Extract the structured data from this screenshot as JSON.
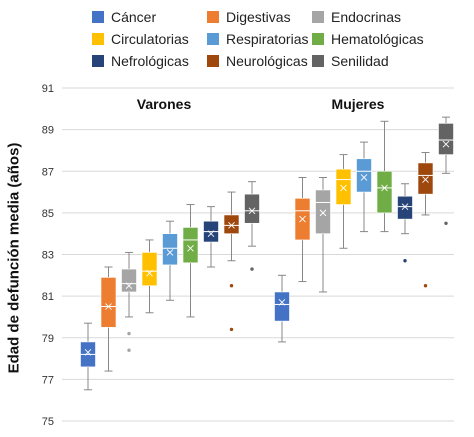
{
  "chart_data": {
    "type": "boxplot",
    "ylabel": "Edad de defunción media (años)",
    "ylim": [
      75,
      91
    ],
    "yticks": [
      75,
      77,
      79,
      81,
      83,
      85,
      87,
      89,
      91
    ],
    "grid": "horizontal",
    "legend_position": "top",
    "groups": [
      "Varones",
      "Mujeres"
    ],
    "series": [
      {
        "name": "Cáncer",
        "color": "#4472C4",
        "Varones": {
          "min": 76.5,
          "q1": 77.6,
          "median": 78.2,
          "q3": 78.8,
          "max": 79.7,
          "mean": 78.3,
          "outliers": []
        },
        "Mujeres": {
          "min": 78.8,
          "q1": 79.8,
          "median": 80.6,
          "q3": 81.2,
          "max": 82.0,
          "mean": 80.7,
          "outliers": []
        }
      },
      {
        "name": "Digestivas",
        "color": "#ED7D31",
        "Varones": {
          "min": 77.4,
          "q1": 79.5,
          "median": 80.5,
          "q3": 81.9,
          "max": 82.4,
          "mean": 80.5,
          "outliers": []
        },
        "Mujeres": {
          "min": 81.7,
          "q1": 83.7,
          "median": 85.1,
          "q3": 85.7,
          "max": 86.7,
          "mean": 84.7,
          "outliers": []
        }
      },
      {
        "name": "Endocrinas",
        "color": "#A5A5A5",
        "Varones": {
          "min": 80.0,
          "q1": 81.2,
          "median": 81.6,
          "q3": 82.3,
          "max": 83.1,
          "mean": 81.5,
          "outliers": [
            79.2,
            78.4
          ]
        },
        "Mujeres": {
          "min": 81.2,
          "q1": 84.0,
          "median": 85.5,
          "q3": 86.1,
          "max": 86.7,
          "mean": 85.0,
          "outliers": []
        }
      },
      {
        "name": "Circulatorias",
        "color": "#FFC000",
        "Varones": {
          "min": 80.2,
          "q1": 81.5,
          "median": 82.2,
          "q3": 83.1,
          "max": 83.7,
          "mean": 82.1,
          "outliers": []
        },
        "Mujeres": {
          "min": 83.3,
          "q1": 85.4,
          "median": 86.6,
          "q3": 87.1,
          "max": 87.8,
          "mean": 86.2,
          "outliers": []
        }
      },
      {
        "name": "Respiratorias",
        "color": "#5B9BD5",
        "Varones": {
          "min": 80.8,
          "q1": 82.5,
          "median": 83.3,
          "q3": 84.0,
          "max": 84.6,
          "mean": 83.1,
          "outliers": []
        },
        "Mujeres": {
          "min": 84.1,
          "q1": 86.0,
          "median": 87.0,
          "q3": 87.6,
          "max": 88.4,
          "mean": 86.7,
          "outliers": []
        }
      },
      {
        "name": "Hematológicas",
        "color": "#70AD47",
        "Varones": {
          "min": 80.0,
          "q1": 82.6,
          "median": 83.7,
          "q3": 84.3,
          "max": 85.4,
          "mean": 83.3,
          "outliers": []
        },
        "Mujeres": {
          "min": 84.1,
          "q1": 85.0,
          "median": 86.2,
          "q3": 87.0,
          "max": 89.4,
          "mean": 86.2,
          "outliers": []
        }
      },
      {
        "name": "Nefrológicas",
        "color": "#264478",
        "Varones": {
          "min": 82.4,
          "q1": 83.6,
          "median": 84.1,
          "q3": 84.6,
          "max": 85.3,
          "mean": 84.0,
          "outliers": []
        },
        "Mujeres": {
          "min": 84.0,
          "q1": 84.7,
          "median": 85.3,
          "q3": 85.8,
          "max": 86.4,
          "mean": 85.3,
          "outliers": [
            82.7
          ]
        }
      },
      {
        "name": "Neurológicas",
        "color": "#9E480E",
        "Varones": {
          "min": 82.7,
          "q1": 84.0,
          "median": 84.4,
          "q3": 84.9,
          "max": 86.0,
          "mean": 84.4,
          "outliers": [
            81.5,
            79.4
          ]
        },
        "Mujeres": {
          "min": 84.9,
          "q1": 85.9,
          "median": 86.8,
          "q3": 87.4,
          "max": 87.9,
          "mean": 86.6,
          "outliers": [
            81.5
          ]
        }
      },
      {
        "name": "Senilidad",
        "color": "#636363",
        "Varones": {
          "min": 83.4,
          "q1": 84.5,
          "median": 85.1,
          "q3": 85.9,
          "max": 86.5,
          "mean": 85.1,
          "outliers": [
            82.3
          ]
        },
        "Mujeres": {
          "min": 86.9,
          "q1": 87.8,
          "median": 88.5,
          "q3": 89.3,
          "max": 89.6,
          "mean": 88.3,
          "outliers": [
            84.5
          ]
        }
      }
    ]
  }
}
